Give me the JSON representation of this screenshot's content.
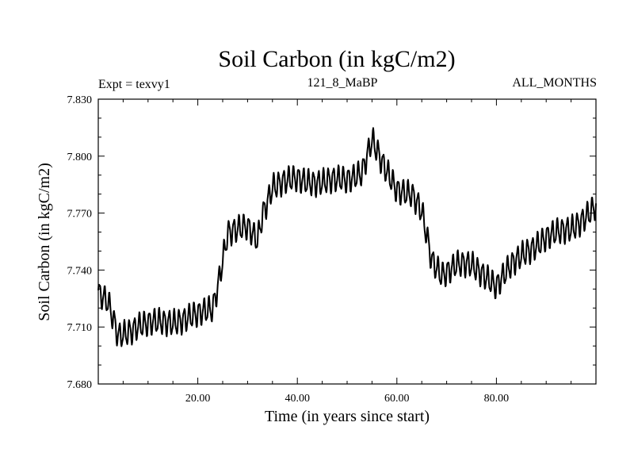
{
  "chart_data": {
    "type": "line",
    "title": "Soil Carbon (in kgC/m2)",
    "subtitle_left": "Expt = texvy1",
    "subtitle_center": "121_8_MaBP",
    "subtitle_right": "ALL_MONTHS",
    "xlabel": "Time (in years since start)",
    "ylabel": "Soil Carbon (in kgC/m2)",
    "xlim": [
      0,
      100
    ],
    "ylim": [
      7.68,
      7.83
    ],
    "xticks": [
      20,
      40,
      60,
      80
    ],
    "xtick_labels": [
      "20.00",
      "40.00",
      "60.00",
      "80.00"
    ],
    "yticks": [
      7.68,
      7.71,
      7.74,
      7.77,
      7.8,
      7.83
    ],
    "ytick_labels": [
      "7.680",
      "7.710",
      "7.740",
      "7.770",
      "7.800",
      "7.830"
    ],
    "series": [
      {
        "name": "Soil Carbon",
        "color": "#000000",
        "seasonal_amplitude": 0.006,
        "cycle_length_years": 1,
        "trend_x": [
          0,
          2,
          4,
          8,
          15,
          20,
          23,
          24,
          26,
          30,
          32,
          33,
          35,
          40,
          45,
          50,
          53,
          55,
          57,
          60,
          63,
          65,
          67,
          69,
          72,
          75,
          78,
          80,
          83,
          86,
          90,
          95,
          100
        ],
        "trend_y": [
          7.728,
          7.722,
          7.705,
          7.711,
          7.713,
          7.716,
          7.72,
          7.732,
          7.76,
          7.762,
          7.756,
          7.77,
          7.784,
          7.788,
          7.786,
          7.788,
          7.792,
          7.808,
          7.796,
          7.783,
          7.78,
          7.77,
          7.745,
          7.738,
          7.743,
          7.742,
          7.737,
          7.732,
          7.742,
          7.75,
          7.757,
          7.762,
          7.773
        ]
      }
    ]
  }
}
